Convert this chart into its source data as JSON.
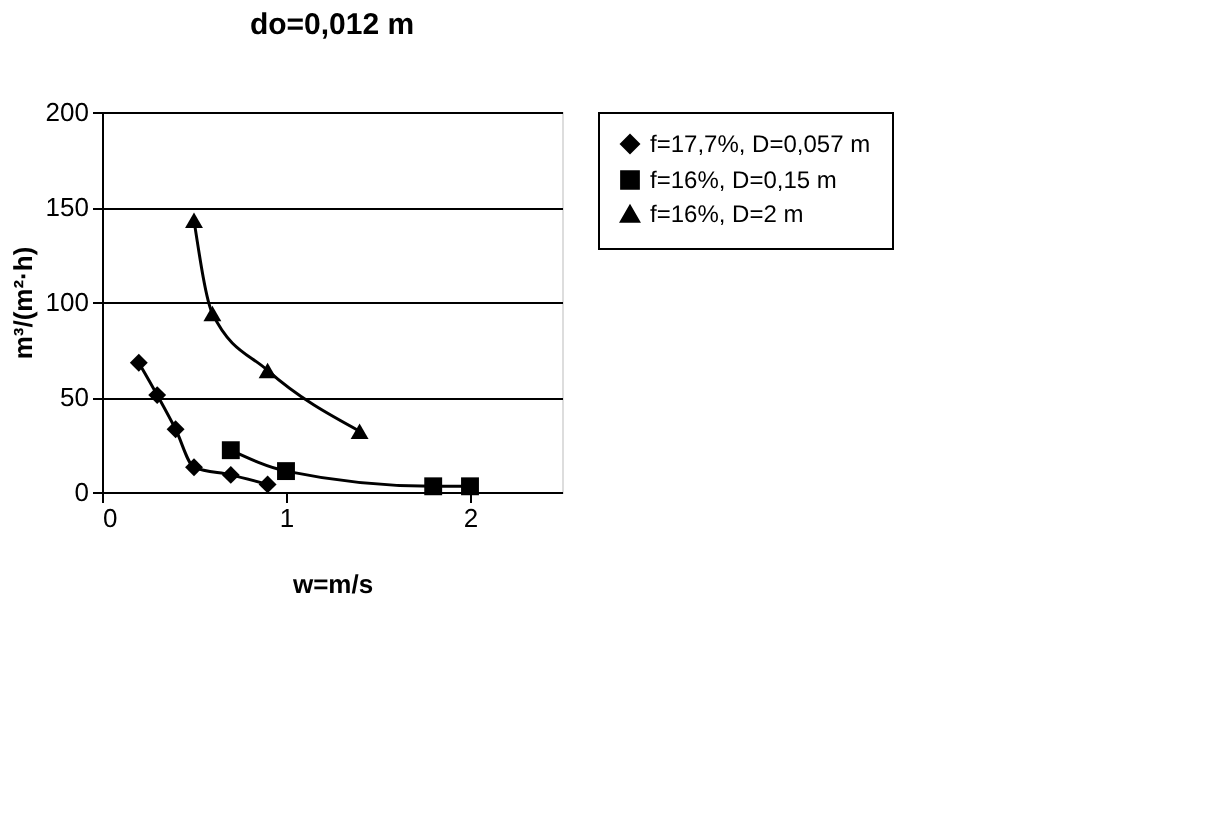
{
  "chart_data": {
    "type": "line",
    "title": "do=0,012 m",
    "xlabel": "w=m/s",
    "ylabel": "m³/(m²·h)",
    "xlim": [
      0,
      2.5
    ],
    "xticks": [
      0,
      1,
      2
    ],
    "ylim": [
      0,
      200
    ],
    "yticks": [
      0,
      50,
      100,
      150,
      200
    ],
    "grid": "y",
    "legend": "right",
    "line_style": "solid",
    "series": [
      {
        "name": "f=17,7%, D=0,057 m",
        "color": "#000000",
        "marker": "diamond",
        "x": [
          0.2,
          0.3,
          0.4,
          0.5,
          0.7,
          0.9
        ],
        "values": [
          68,
          51,
          33,
          13,
          9,
          4
        ]
      },
      {
        "name": "f=16%, D=0,15 m",
        "color": "#000000",
        "marker": "square",
        "x": [
          0.7,
          1.0,
          1.8,
          2.0
        ],
        "values": [
          22,
          11,
          3,
          3
        ]
      },
      {
        "name": "f=16%, D=2 m",
        "color": "#000000",
        "marker": "triangle",
        "x": [
          0.5,
          0.6,
          0.9,
          1.4
        ],
        "values": [
          143,
          94,
          64,
          32
        ]
      }
    ]
  }
}
